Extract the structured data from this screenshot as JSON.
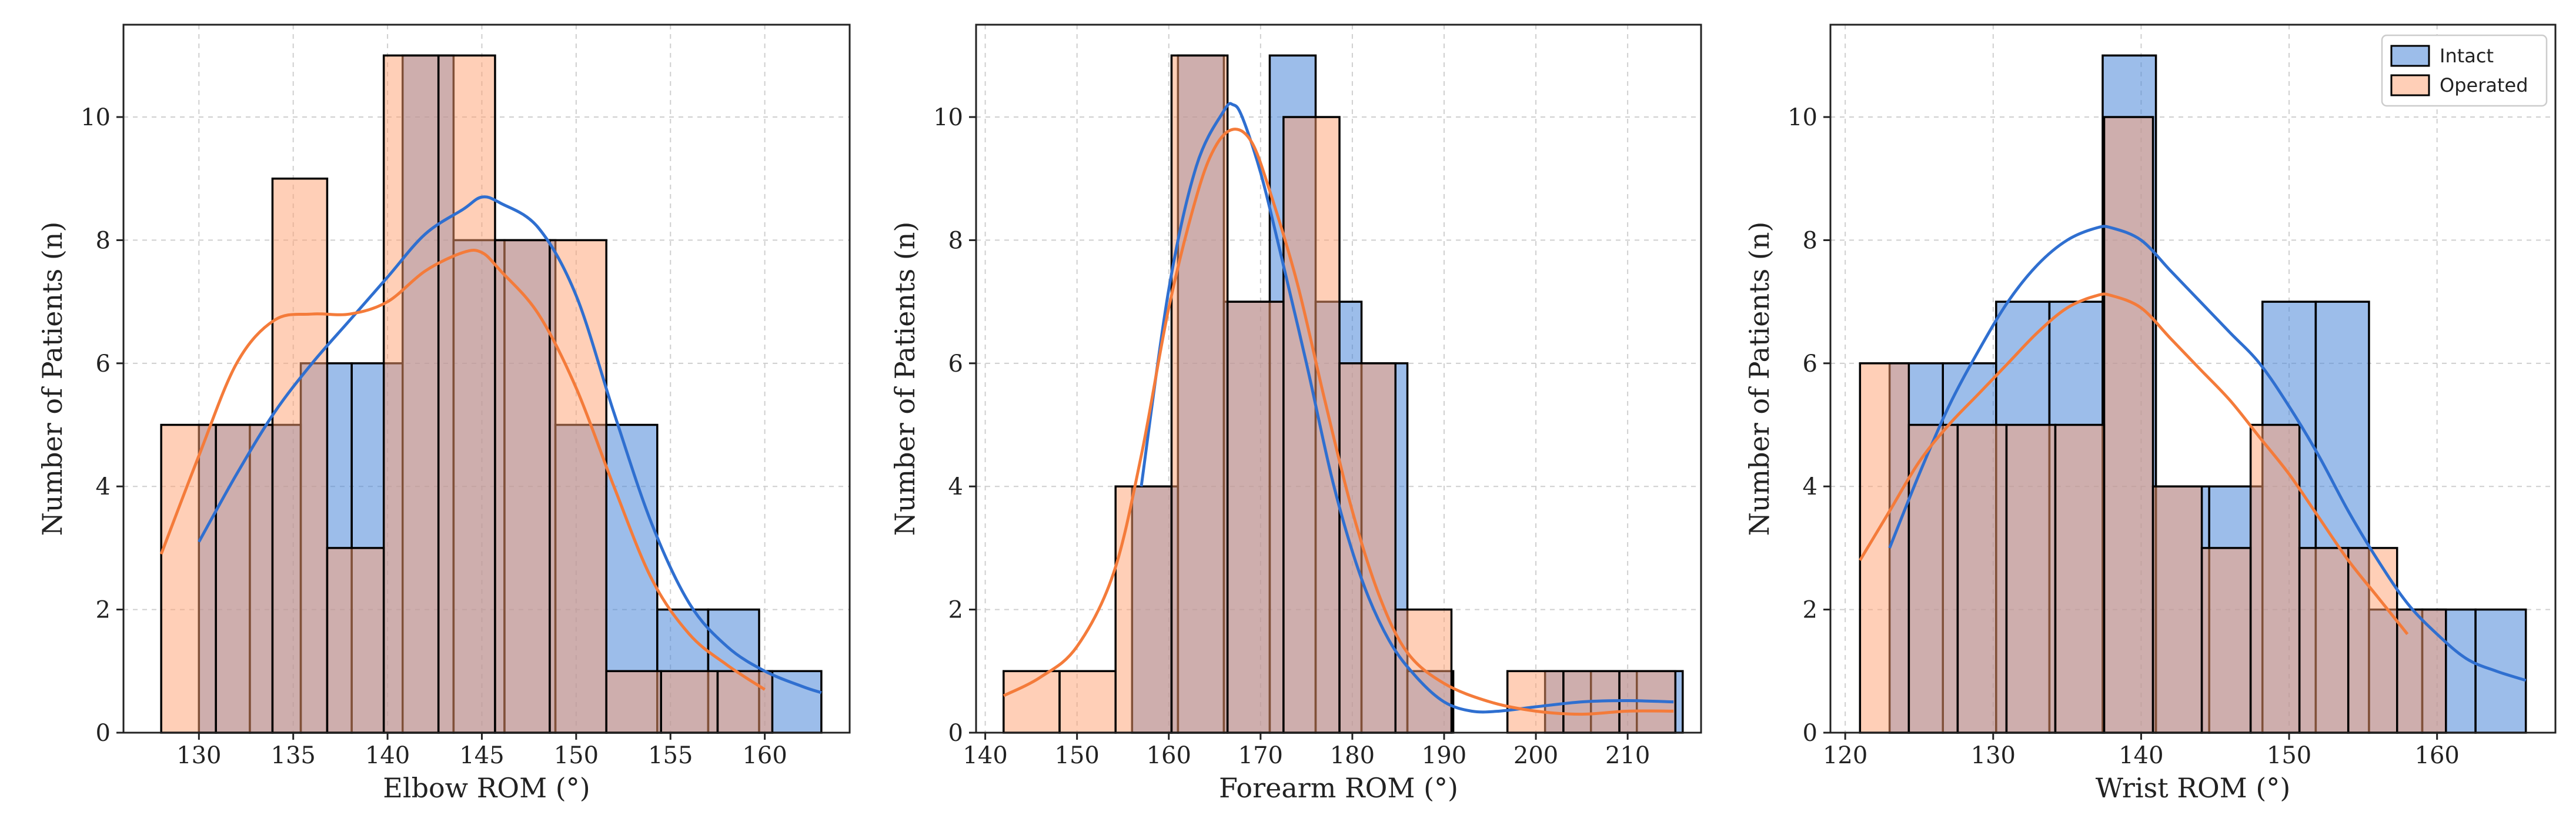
{
  "colors": {
    "intact": "#4a86d8",
    "operated": "#ffa070",
    "intact_line": "#2f6fd0",
    "operated_line": "#f47b3a"
  },
  "legend": {
    "items": [
      "Intact",
      "Operated"
    ],
    "placement": "top-right of third panel"
  },
  "chart_data": [
    {
      "type": "histogram",
      "xlabel": "Elbow ROM (°)",
      "ylabel": "Number of Patients (n)",
      "xlim": [
        126,
        164.5
      ],
      "ylim": [
        0,
        11.5
      ],
      "xticks": [
        130,
        135,
        140,
        145,
        150,
        155,
        160
      ],
      "yticks": [
        0,
        2,
        4,
        6,
        8,
        10
      ],
      "grid": true,
      "series": [
        {
          "name": "Intact",
          "bins": [
            [
              130,
              132.7,
              5
            ],
            [
              132.7,
              135.4,
              5
            ],
            [
              135.4,
              138.1,
              6
            ],
            [
              138.1,
              140.8,
              6
            ],
            [
              140.8,
              143.5,
              11
            ],
            [
              143.5,
              146.2,
              8
            ],
            [
              146.2,
              148.9,
              8
            ],
            [
              148.9,
              151.6,
              5
            ],
            [
              151.6,
              154.3,
              5
            ],
            [
              154.3,
              157,
              2
            ],
            [
              157,
              159.7,
              2
            ],
            [
              159.7,
              163,
              1
            ]
          ],
          "kde": [
            [
              130,
              3.1
            ],
            [
              132,
              4.2
            ],
            [
              134,
              5.2
            ],
            [
              136,
              6.0
            ],
            [
              138,
              6.7
            ],
            [
              140,
              7.4
            ],
            [
              142,
              8.1
            ],
            [
              144,
              8.5
            ],
            [
              145,
              8.7
            ],
            [
              146,
              8.6
            ],
            [
              148,
              8.2
            ],
            [
              150,
              7.1
            ],
            [
              152,
              5.2
            ],
            [
              154,
              3.4
            ],
            [
              156,
              2.1
            ],
            [
              158,
              1.4
            ],
            [
              160,
              1.0
            ],
            [
              162,
              0.75
            ],
            [
              163,
              0.65
            ]
          ]
        },
        {
          "name": "Operated",
          "bins": [
            [
              128,
              130.9,
              5
            ],
            [
              130.9,
              133.9,
              5
            ],
            [
              133.9,
              136.8,
              9
            ],
            [
              136.8,
              139.8,
              3
            ],
            [
              139.8,
              142.7,
              11
            ],
            [
              142.7,
              145.7,
              11
            ],
            [
              145.7,
              148.6,
              8
            ],
            [
              148.6,
              151.6,
              8
            ],
            [
              151.6,
              154.5,
              1
            ],
            [
              154.5,
              157.5,
              1
            ],
            [
              157.5,
              160.4,
              1
            ]
          ],
          "kde": [
            [
              128,
              2.9
            ],
            [
              130,
              4.5
            ],
            [
              132,
              6.0
            ],
            [
              134,
              6.7
            ],
            [
              136,
              6.8
            ],
            [
              138,
              6.8
            ],
            [
              140,
              7.0
            ],
            [
              142,
              7.5
            ],
            [
              144,
              7.8
            ],
            [
              145,
              7.8
            ],
            [
              146,
              7.5
            ],
            [
              148,
              6.8
            ],
            [
              150,
              5.6
            ],
            [
              152,
              4.0
            ],
            [
              154,
              2.5
            ],
            [
              156,
              1.6
            ],
            [
              158,
              1.1
            ],
            [
              160,
              0.7
            ]
          ]
        }
      ]
    },
    {
      "type": "histogram",
      "xlabel": "Forearm ROM (°)",
      "ylabel": "Number of Patients (n)",
      "xlim": [
        139,
        218
      ],
      "ylim": [
        0,
        11.5
      ],
      "xticks": [
        140,
        150,
        160,
        170,
        180,
        190,
        200,
        210
      ],
      "yticks": [
        0,
        2,
        4,
        6,
        8,
        10
      ],
      "grid": true,
      "series": [
        {
          "name": "Intact",
          "bins": [
            [
              156,
              161,
              4
            ],
            [
              161,
              166,
              11
            ],
            [
              166,
              171,
              7
            ],
            [
              171,
              176,
              11
            ],
            [
              176,
              181,
              7
            ],
            [
              181,
              186,
              6
            ],
            [
              186,
              191,
              1
            ],
            [
              191,
              196,
              0
            ],
            [
              196,
              201,
              0
            ],
            [
              201,
              206,
              1
            ],
            [
              206,
              211,
              1
            ],
            [
              211,
              216,
              1
            ]
          ],
          "kde": [
            [
              157,
              4.0
            ],
            [
              160,
              7.2
            ],
            [
              163,
              9.2
            ],
            [
              166,
              10.1
            ],
            [
              167,
              10.2
            ],
            [
              168,
              10.0
            ],
            [
              170,
              9.1
            ],
            [
              172,
              7.9
            ],
            [
              175,
              6.0
            ],
            [
              178,
              4.0
            ],
            [
              181,
              2.5
            ],
            [
              184,
              1.5
            ],
            [
              187,
              0.9
            ],
            [
              190,
              0.5
            ],
            [
              193,
              0.35
            ],
            [
              196,
              0.35
            ],
            [
              200,
              0.42
            ],
            [
              205,
              0.5
            ],
            [
              210,
              0.52
            ],
            [
              215,
              0.5
            ]
          ]
        },
        {
          "name": "Operated",
          "bins": [
            [
              142,
              148.1,
              1
            ],
            [
              148.1,
              154.2,
              1
            ],
            [
              154.2,
              160.3,
              4
            ],
            [
              160.3,
              166.4,
              11
            ],
            [
              166.4,
              172.5,
              7
            ],
            [
              172.5,
              178.6,
              10
            ],
            [
              178.6,
              184.7,
              6
            ],
            [
              184.7,
              190.8,
              2
            ],
            [
              190.8,
              196.9,
              0
            ],
            [
              196.9,
              203,
              1
            ],
            [
              203,
              209.1,
              1
            ],
            [
              209.1,
              215.2,
              1
            ]
          ],
          "kde": [
            [
              142,
              0.6
            ],
            [
              146,
              0.9
            ],
            [
              150,
              1.4
            ],
            [
              154,
              2.6
            ],
            [
              157,
              4.5
            ],
            [
              160,
              6.9
            ],
            [
              163,
              8.7
            ],
            [
              165,
              9.5
            ],
            [
              167,
              9.8
            ],
            [
              169,
              9.6
            ],
            [
              171,
              8.8
            ],
            [
              174,
              7.3
            ],
            [
              177,
              5.4
            ],
            [
              180,
              3.6
            ],
            [
              183,
              2.2
            ],
            [
              186,
              1.3
            ],
            [
              190,
              0.8
            ],
            [
              195,
              0.5
            ],
            [
              200,
              0.35
            ],
            [
              205,
              0.3
            ],
            [
              210,
              0.35
            ],
            [
              215,
              0.35
            ]
          ]
        }
      ]
    },
    {
      "type": "histogram",
      "xlabel": "Wrist ROM (°)",
      "ylabel": "Number of Patients (n)",
      "xlim": [
        119,
        168
      ],
      "ylim": [
        0,
        11.5
      ],
      "xticks": [
        120,
        130,
        140,
        150,
        160
      ],
      "yticks": [
        0,
        2,
        4,
        6,
        8,
        10
      ],
      "grid": true,
      "series": [
        {
          "name": "Intact",
          "bins": [
            [
              123,
              126.6,
              6
            ],
            [
              126.6,
              130.2,
              6
            ],
            [
              130.2,
              133.8,
              7
            ],
            [
              133.8,
              137.4,
              7
            ],
            [
              137.4,
              141,
              11
            ],
            [
              141,
              144.6,
              4
            ],
            [
              144.6,
              148.2,
              4
            ],
            [
              148.2,
              151.8,
              7
            ],
            [
              151.8,
              155.4,
              7
            ],
            [
              155.4,
              159,
              2
            ],
            [
              159,
              162.6,
              2
            ],
            [
              162.6,
              166,
              2
            ]
          ],
          "kde": [
            [
              123,
              3.0
            ],
            [
              125,
              4.2
            ],
            [
              127,
              5.3
            ],
            [
              129,
              6.2
            ],
            [
              131,
              7.0
            ],
            [
              133,
              7.6
            ],
            [
              135,
              8.0
            ],
            [
              137,
              8.2
            ],
            [
              138,
              8.2
            ],
            [
              140,
              8.0
            ],
            [
              142,
              7.5
            ],
            [
              144,
              7.0
            ],
            [
              146,
              6.5
            ],
            [
              148,
              6.0
            ],
            [
              150,
              5.3
            ],
            [
              152,
              4.5
            ],
            [
              154,
              3.6
            ],
            [
              156,
              2.8
            ],
            [
              158,
              2.1
            ],
            [
              160,
              1.6
            ],
            [
              162,
              1.2
            ],
            [
              164,
              1.0
            ],
            [
              166,
              0.85
            ]
          ]
        },
        {
          "name": "Operated",
          "bins": [
            [
              121,
              124.3,
              6
            ],
            [
              124.3,
              127.6,
              5
            ],
            [
              127.6,
              130.9,
              5
            ],
            [
              130.9,
              134.2,
              5
            ],
            [
              134.2,
              137.5,
              5
            ],
            [
              137.5,
              140.8,
              10
            ],
            [
              140.8,
              144.1,
              4
            ],
            [
              144.1,
              147.4,
              3
            ],
            [
              147.4,
              150.7,
              5
            ],
            [
              150.7,
              154,
              3
            ],
            [
              154,
              157.3,
              3
            ],
            [
              157.3,
              160.6,
              2
            ]
          ],
          "kde": [
            [
              121,
              2.8
            ],
            [
              123,
              3.6
            ],
            [
              125,
              4.4
            ],
            [
              127,
              5.0
            ],
            [
              129,
              5.5
            ],
            [
              131,
              6.0
            ],
            [
              133,
              6.5
            ],
            [
              135,
              6.9
            ],
            [
              137,
              7.1
            ],
            [
              138,
              7.1
            ],
            [
              140,
              6.9
            ],
            [
              142,
              6.4
            ],
            [
              144,
              5.9
            ],
            [
              146,
              5.4
            ],
            [
              148,
              4.8
            ],
            [
              150,
              4.2
            ],
            [
              152,
              3.5
            ],
            [
              154,
              2.8
            ],
            [
              156,
              2.2
            ],
            [
              158,
              1.6
            ]
          ]
        }
      ]
    }
  ]
}
